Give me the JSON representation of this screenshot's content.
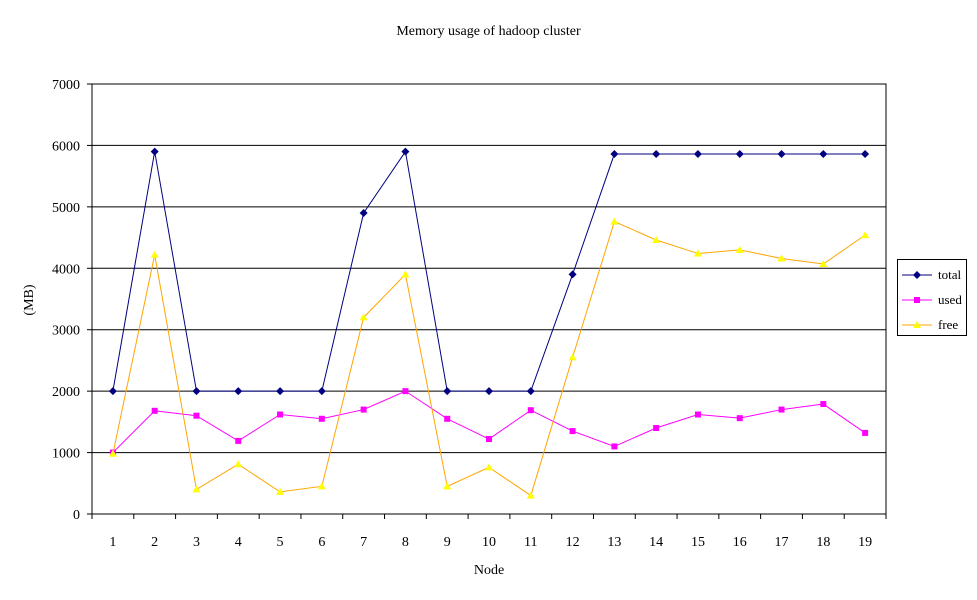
{
  "chart_data": {
    "type": "line",
    "title": "Memory usage of hadoop cluster",
    "xlabel": "Node",
    "ylabel": "(MB)",
    "x": [
      "1",
      "2",
      "3",
      "4",
      "5",
      "6",
      "7",
      "8",
      "9",
      "10",
      "11",
      "12",
      "13",
      "14",
      "15",
      "16",
      "17",
      "18",
      "19"
    ],
    "ylim": [
      0,
      7000
    ],
    "yticks": [
      0,
      1000,
      2000,
      3000,
      4000,
      5000,
      6000,
      7000
    ],
    "grid": "horizontal",
    "legend_position": "right",
    "series": [
      {
        "name": "total",
        "color": "#000080",
        "marker": "diamond",
        "values": [
          2000,
          5900,
          2000,
          2000,
          2000,
          2000,
          4900,
          5900,
          2000,
          2000,
          2000,
          3900,
          5860,
          5860,
          5860,
          5860,
          5860,
          5860,
          5860
        ]
      },
      {
        "name": "used",
        "color": "#ff00ff",
        "marker": "square",
        "values": [
          1000,
          1680,
          1600,
          1190,
          1620,
          1550,
          1700,
          2000,
          1550,
          1220,
          1690,
          1350,
          1100,
          1400,
          1620,
          1560,
          1700,
          1790,
          1320
        ]
      },
      {
        "name": "free",
        "color": "#ffff00",
        "line_color": "#ffa500",
        "marker": "triangle",
        "values": [
          980,
          4220,
          400,
          810,
          360,
          450,
          3200,
          3900,
          450,
          760,
          300,
          2550,
          4760,
          4460,
          4240,
          4300,
          4160,
          4070,
          4540
        ]
      }
    ]
  }
}
